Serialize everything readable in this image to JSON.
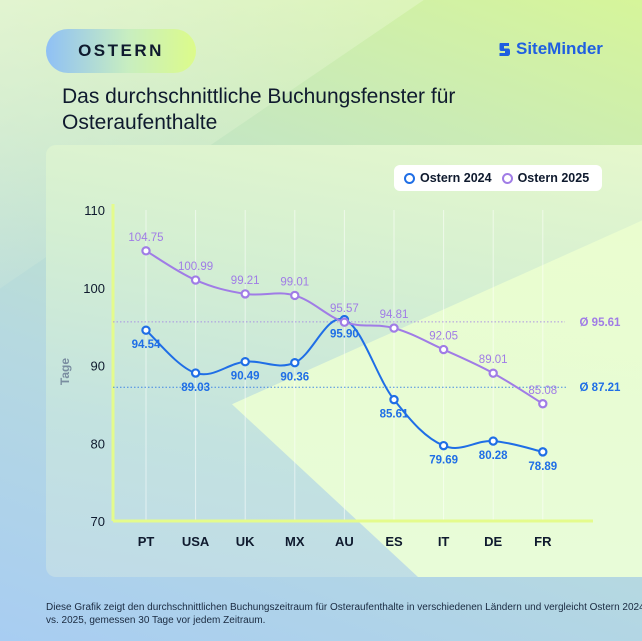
{
  "badge": {
    "label": "OSTERN"
  },
  "logo": {
    "name": "SiteMinder",
    "icon": "siteminder-logo-icon",
    "color": "#1f5fe0"
  },
  "title": "Das durchschnittliche Buchungsfenster für Osteraufenthalte",
  "footnote": "Diese Grafik zeigt den durchschnittlichen Buchungszeitraum für Osteraufenthalte in verschiedenen Ländern und vergleicht Ostern 2024 vs. 2025, gemessen 30 Tage vor jedem Zeitraum.",
  "chart_data": {
    "type": "line",
    "title": "Das durchschnittliche Buchungsfenster für Osteraufenthalte",
    "xlabel": "",
    "ylabel": "Tage",
    "ylim": [
      70,
      110
    ],
    "yticks": [
      70,
      80,
      90,
      100,
      110
    ],
    "grid": "vertical",
    "legend_position": "top-right",
    "categories": [
      "PT",
      "USA",
      "UK",
      "MX",
      "AU",
      "ES",
      "IT",
      "DE",
      "FR"
    ],
    "series": [
      {
        "name": "Ostern 2024",
        "color": "#1f6ee6",
        "values": [
          94.54,
          89.03,
          90.49,
          90.36,
          95.9,
          85.61,
          79.69,
          80.28,
          78.89
        ],
        "labels": [
          "94.54",
          "89.03",
          "90.49",
          "90.36",
          "95.90",
          "85.61",
          "79.69",
          "80.28",
          "78.89"
        ],
        "average": 87.21,
        "average_label": "Ø 87.21"
      },
      {
        "name": "Ostern 2025",
        "color": "#a07ce6",
        "values": [
          104.75,
          100.99,
          99.21,
          99.01,
          95.57,
          94.81,
          92.05,
          89.01,
          85.08
        ],
        "labels": [
          "104.75",
          "100.99",
          "99.21",
          "99.01",
          "95.57",
          "94.81",
          "92.05",
          "89.01",
          "85.08"
        ],
        "average": 95.61,
        "average_label": "Ø 95.61"
      }
    ]
  }
}
